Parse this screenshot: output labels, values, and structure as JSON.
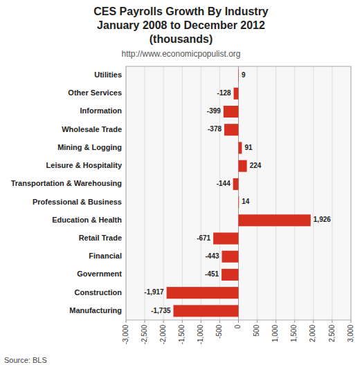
{
  "chart_data": {
    "type": "bar",
    "orientation": "horizontal",
    "title": "CES Payrolls Growth By Industry\nJanuary 2008 to December 2012\n(thousands)",
    "subtitle": "http://www.economicpopulist.org",
    "annotations": [
      "Source:  BLS"
    ],
    "categories": [
      "Manufacturing",
      "Construction",
      "Government",
      "Financial",
      "Retail Trade",
      "Education & Health",
      "Professional & Business",
      "Transportation & Warehousing",
      "Leisure & Hospitality",
      "Mining & Logging",
      "Wholesale Trade",
      "Information",
      "Other Services",
      "Utilities"
    ],
    "values": [
      -1735,
      -1917,
      -451,
      -443,
      -671,
      1926,
      14,
      -144,
      224,
      91,
      -378,
      -399,
      -128,
      9
    ],
    "value_labels": [
      "-1,735",
      "-1,917",
      "-451",
      "-443",
      "-671",
      "1,926",
      "14",
      "-144",
      "224",
      "91",
      "-378",
      "-399",
      "-128",
      "9"
    ],
    "data_labels": true,
    "color": "#d63020",
    "xlim": [
      -3000,
      3000
    ],
    "xticks": [
      {
        "value": -3000,
        "label": "-3,000"
      },
      {
        "value": -2500,
        "label": "-2,500"
      },
      {
        "value": -2000,
        "label": "-2,000"
      },
      {
        "value": -1500,
        "label": "-1,500"
      },
      {
        "value": -1000,
        "label": "-1,000"
      },
      -500,
      0,
      500,
      {
        "value": 1000,
        "label": "1,000"
      },
      {
        "value": 1500,
        "label": "1,500"
      },
      {
        "value": 2000,
        "label": "2,000"
      },
      {
        "value": 2500,
        "label": "2,500"
      },
      {
        "value": 3000,
        "label": "3,000"
      }
    ],
    "grid": true
  }
}
